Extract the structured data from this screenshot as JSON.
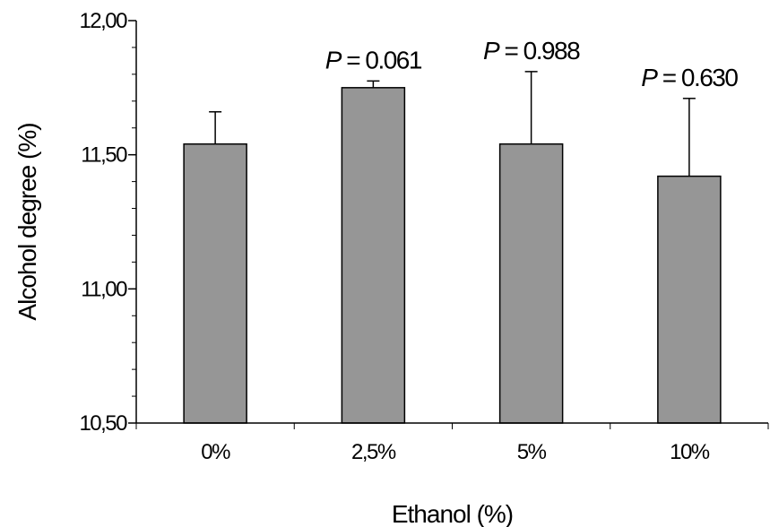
{
  "chart_data": {
    "type": "bar",
    "title": "",
    "xlabel": "Ethanol (%)",
    "ylabel": "Alcohol degree (%)",
    "categories": [
      "0%",
      "2,5%",
      "5%",
      "10%"
    ],
    "values": [
      11.54,
      11.75,
      11.54,
      11.42
    ],
    "errors": [
      0.12,
      0.025,
      0.27,
      0.29
    ],
    "annotations": [
      {
        "category": "2,5%",
        "p_label": "P",
        "p_value": "= 0.061"
      },
      {
        "category": "5%",
        "p_label": "P",
        "p_value": "= 0.988"
      },
      {
        "category": "10%",
        "p_label": "P",
        "p_value": "= 0.630"
      }
    ],
    "ylim": [
      10.5,
      12.0
    ],
    "yticks": [
      10.5,
      11.0,
      11.5,
      12.0
    ],
    "ytick_labels": [
      "10,50",
      "11,00",
      "11,50",
      "12,00"
    ],
    "bar_color": "#969696",
    "bar_edge_color": "#000000",
    "grid": false,
    "legend": "none"
  }
}
